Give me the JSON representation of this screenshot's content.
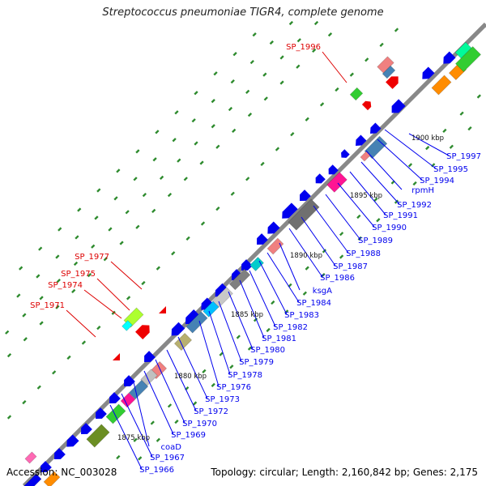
{
  "title": "Streptococcus pneumoniae TIGR4, complete genome",
  "footer": {
    "accession": "Accession: NC_003028",
    "summary": "Topology: circular; Length: 2,160,842 bp; Genes: 2,175"
  },
  "colors": {
    "label_blue": "#0000ee",
    "label_red": "#dd0000",
    "backbone": "#888888",
    "tick_green": "#2e8b2e",
    "gene_blue": "#0000ee",
    "gene_red": "#ee0000"
  },
  "kbp_marks": [
    "1875 kbp",
    "1880 kbp",
    "1885 kbp",
    "1890 kbp",
    "1895 kbp",
    "1900 kbp"
  ],
  "labels_forward": [
    "SP_1977",
    "SP_1975",
    "SP_1974",
    "SP_1971",
    "SP_1996"
  ],
  "labels_reverse": [
    "SP_1997",
    "SP_1995",
    "SP_1994",
    "rpmH",
    "SP_1992",
    "SP_1991",
    "SP_1990",
    "SP_1989",
    "SP_1988",
    "SP_1987",
    "SP_1986",
    "ksgA",
    "SP_1984",
    "SP_1983",
    "SP_1982",
    "SP_1981",
    "SP_1980",
    "SP_1979",
    "SP_1978",
    "SP_1976",
    "SP_1973",
    "SP_1972",
    "SP_1970",
    "SP_1969",
    "SP_1967",
    "coaD",
    "SP_1966"
  ]
}
